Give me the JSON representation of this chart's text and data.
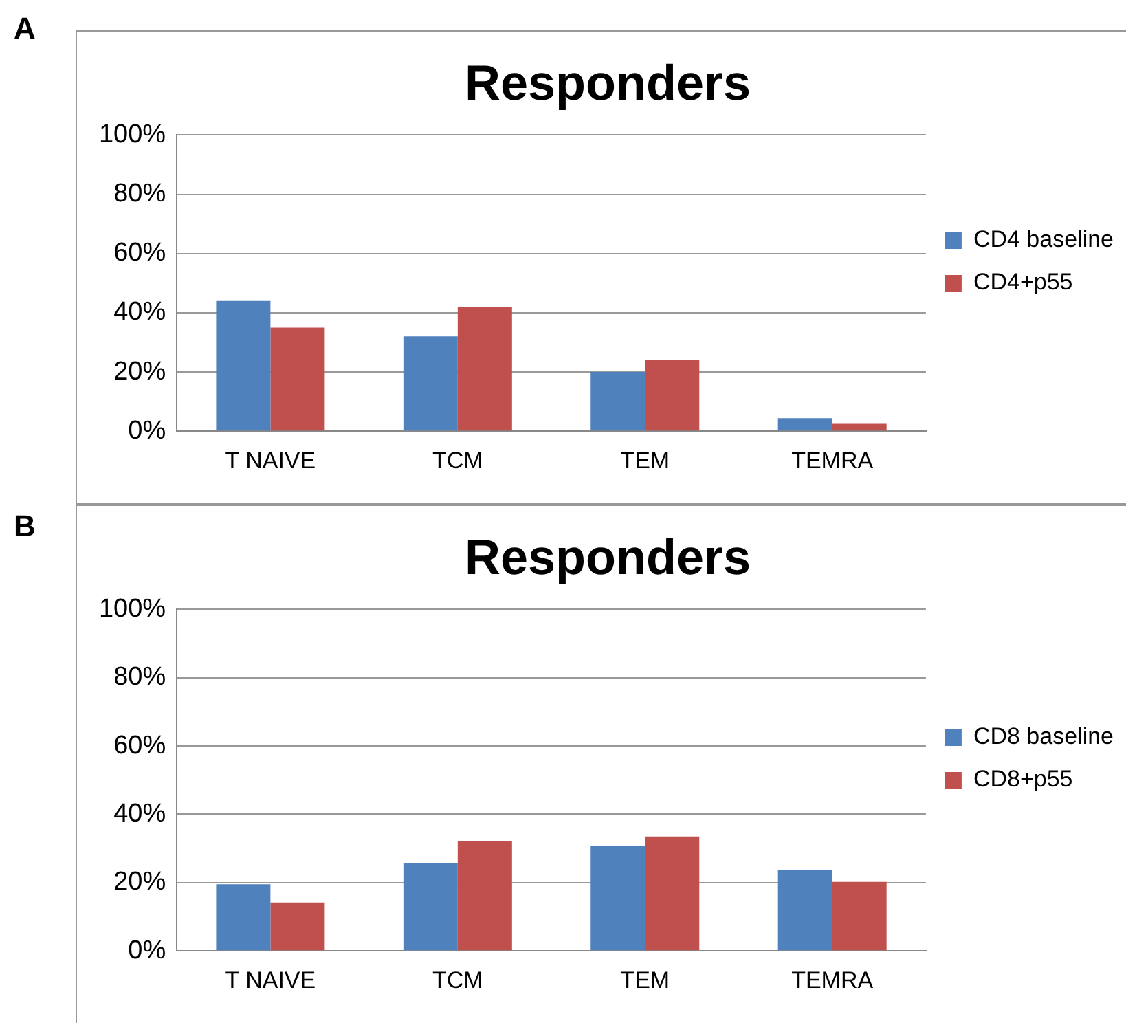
{
  "chart_data": [
    {
      "type": "bar",
      "title": "Responders",
      "annotations": [
        "A"
      ],
      "categories": [
        "T NAIVE",
        "TCM",
        "TEM",
        "TEMRA"
      ],
      "series": [
        {
          "name": "CD4 baseline",
          "color": "#4f81bd",
          "values": [
            44,
            32,
            20,
            4.4
          ]
        },
        {
          "name": "CD4+p55",
          "color": "#c0504d",
          "values": [
            35,
            42,
            24,
            2.5
          ]
        }
      ],
      "ylim": [
        0,
        100
      ],
      "yticks": [
        {
          "value": 0,
          "label": "0%"
        },
        {
          "value": 20,
          "label": "20%"
        },
        {
          "value": 40,
          "label": "40%"
        },
        {
          "value": 60,
          "label": "60%"
        },
        {
          "value": 80,
          "label": "80%"
        },
        {
          "value": 100,
          "label": "100%"
        }
      ],
      "grid": "y",
      "legend": "right"
    },
    {
      "type": "bar",
      "title": "Responders",
      "annotations": [
        "B"
      ],
      "categories": [
        "T NAIVE",
        "TCM",
        "TEM",
        "TEMRA"
      ],
      "series": [
        {
          "name": "CD8 baseline",
          "color": "#4f81bd",
          "values": [
            19.5,
            25.8,
            30.8,
            23.8
          ]
        },
        {
          "name": "CD8+p55",
          "color": "#c0504d",
          "values": [
            14.2,
            32.2,
            33.5,
            20.2
          ]
        }
      ],
      "ylim": [
        0,
        100
      ],
      "yticks": [
        {
          "value": 0,
          "label": "0%"
        },
        {
          "value": 20,
          "label": "20%"
        },
        {
          "value": 40,
          "label": "40%"
        },
        {
          "value": 60,
          "label": "60%"
        },
        {
          "value": 80,
          "label": "80%"
        },
        {
          "value": 100,
          "label": "100%"
        }
      ],
      "grid": "y",
      "legend": "right"
    }
  ]
}
